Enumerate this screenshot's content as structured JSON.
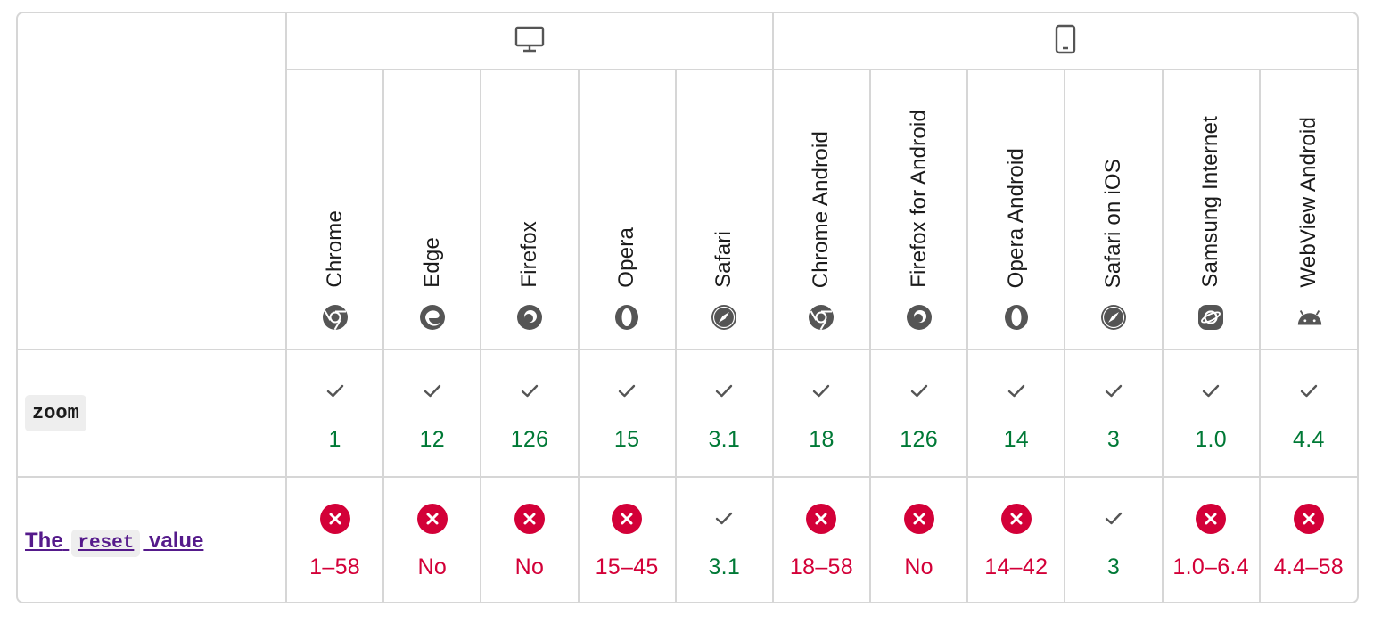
{
  "platforms": [
    {
      "name": "desktop",
      "icon": "desktop-icon"
    },
    {
      "name": "mobile",
      "icon": "mobile-icon"
    }
  ],
  "browsers": [
    {
      "name": "Chrome",
      "icon": "chrome-icon"
    },
    {
      "name": "Edge",
      "icon": "edge-icon"
    },
    {
      "name": "Firefox",
      "icon": "firefox-icon"
    },
    {
      "name": "Opera",
      "icon": "opera-icon"
    },
    {
      "name": "Safari",
      "icon": "safari-icon"
    },
    {
      "name": "Chrome Android",
      "icon": "chrome-icon"
    },
    {
      "name": "Firefox for Android",
      "icon": "firefox-icon"
    },
    {
      "name": "Opera Android",
      "icon": "opera-icon"
    },
    {
      "name": "Safari on iOS",
      "icon": "safari-icon"
    },
    {
      "name": "Samsung Internet",
      "icon": "samsung-internet-icon"
    },
    {
      "name": "WebView Android",
      "icon": "android-icon"
    }
  ],
  "features": [
    {
      "id": "zoom",
      "label_code": "zoom",
      "support": [
        {
          "status": "yes",
          "version": "1"
        },
        {
          "status": "yes",
          "version": "12"
        },
        {
          "status": "yes",
          "version": "126"
        },
        {
          "status": "yes",
          "version": "15"
        },
        {
          "status": "yes",
          "version": "3.1"
        },
        {
          "status": "yes",
          "version": "18"
        },
        {
          "status": "yes",
          "version": "126"
        },
        {
          "status": "yes",
          "version": "14"
        },
        {
          "status": "yes",
          "version": "3"
        },
        {
          "status": "yes",
          "version": "1.0"
        },
        {
          "status": "yes",
          "version": "4.4"
        }
      ]
    },
    {
      "id": "reset",
      "label_before": "The",
      "label_code": "reset",
      "label_after": "value",
      "support": [
        {
          "status": "no",
          "version": "1–58"
        },
        {
          "status": "no",
          "version": "No"
        },
        {
          "status": "no",
          "version": "No"
        },
        {
          "status": "no",
          "version": "15–45"
        },
        {
          "status": "yes",
          "version": "3.1"
        },
        {
          "status": "no",
          "version": "18–58"
        },
        {
          "status": "no",
          "version": "No"
        },
        {
          "status": "no",
          "version": "14–42"
        },
        {
          "status": "yes",
          "version": "3"
        },
        {
          "status": "no",
          "version": "1.0–6.4"
        },
        {
          "status": "no",
          "version": "4.4–58"
        }
      ]
    }
  ],
  "colors": {
    "supported": "#007936",
    "unsupported": "#d30038",
    "link": "#551a8b",
    "border": "#d6d6d6"
  }
}
